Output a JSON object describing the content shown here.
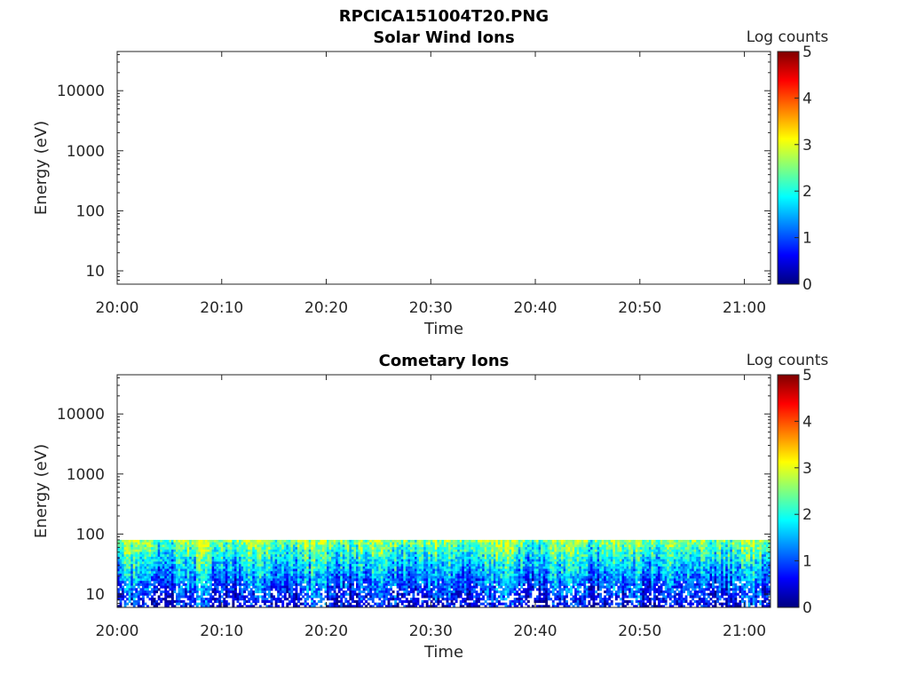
{
  "figure": {
    "title": "RPCICA151004T20.PNG"
  },
  "colormap": [
    "#00007f",
    "#0000ff",
    "#007fff",
    "#00ffff",
    "#7fff7f",
    "#ffff00",
    "#ff7f00",
    "#ff0000",
    "#7f0000"
  ],
  "chart_data": [
    {
      "type": "heatmap",
      "title": "Solar Wind Ions",
      "xlabel": "Time",
      "ylabel": "Energy (eV)",
      "x_ticks": [
        "20:00",
        "20:10",
        "20:20",
        "20:30",
        "20:40",
        "20:50",
        "21:00"
      ],
      "x_tick_minutes": [
        0,
        10,
        20,
        30,
        40,
        50,
        60
      ],
      "xlim_minutes": [
        0,
        62.5
      ],
      "y_ticks": [
        "10",
        "100",
        "1000",
        "10000"
      ],
      "y_tick_values": [
        10,
        100,
        1000,
        10000
      ],
      "yscale": "log",
      "ylim": [
        6,
        45000
      ],
      "colorbar": {
        "label": "Log counts",
        "ticks": [
          "0",
          "1",
          "2",
          "3",
          "4",
          "5"
        ],
        "range": [
          0,
          5
        ]
      },
      "data_band": null
    },
    {
      "type": "heatmap",
      "title": "Cometary Ions",
      "xlabel": "Time",
      "ylabel": "Energy (eV)",
      "x_ticks": [
        "20:00",
        "20:10",
        "20:20",
        "20:30",
        "20:40",
        "20:50",
        "21:00"
      ],
      "x_tick_minutes": [
        0,
        10,
        20,
        30,
        40,
        50,
        60
      ],
      "xlim_minutes": [
        0,
        62.5
      ],
      "y_ticks": [
        "10",
        "100",
        "1000",
        "10000"
      ],
      "y_tick_values": [
        10,
        100,
        1000,
        10000
      ],
      "yscale": "log",
      "ylim": [
        6,
        45000
      ],
      "colorbar": {
        "label": "Log counts",
        "ticks": [
          "0",
          "1",
          "2",
          "3",
          "4",
          "5"
        ],
        "range": [
          0,
          5
        ]
      },
      "data_band": {
        "energy_min_eV": 6,
        "energy_max_eV": 80,
        "log_counts_at_top": 2.6,
        "log_counts_at_bottom": 0.5
      }
    }
  ]
}
